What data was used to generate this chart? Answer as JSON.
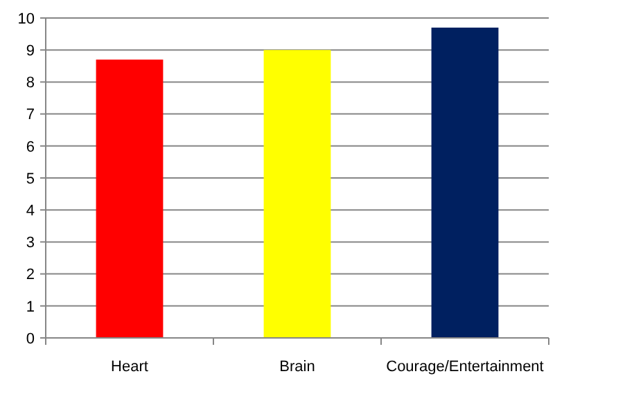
{
  "chart_data": {
    "type": "bar",
    "categories": [
      "Heart",
      "Brain",
      "Courage/Entertainment"
    ],
    "values": [
      8.7,
      9.0,
      9.7
    ],
    "colors": [
      "#ff0000",
      "#ffff00",
      "#002060"
    ],
    "ylim": [
      0,
      10
    ],
    "yticks": [
      0,
      1,
      2,
      3,
      4,
      5,
      6,
      7,
      8,
      9,
      10
    ],
    "grid": "y"
  }
}
